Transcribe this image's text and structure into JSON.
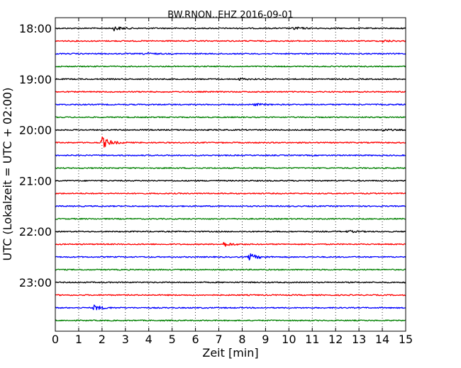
{
  "chart_data": {
    "type": "line",
    "title": "BW.RNON..EHZ 2016-09-01",
    "xlabel": "Zeit  [min]",
    "ylabel": "UTC (Lokalzeit = UTC + 02:00)",
    "xlim": [
      0,
      15
    ],
    "x_ticks": [
      "0",
      "1",
      "2",
      "3",
      "4",
      "5",
      "6",
      "7",
      "8",
      "9",
      "10",
      "11",
      "12",
      "13",
      "14",
      "15"
    ],
    "y_tick_labels": [
      "18:00",
      "19:00",
      "20:00",
      "21:00",
      "22:00",
      "23:00"
    ],
    "grid": "vertical dotted",
    "trace_interval_minutes": 15,
    "start_time": "18:00",
    "trace_colors": [
      "#000000",
      "#ff0000",
      "#0000ff",
      "#008000"
    ],
    "series": [
      {
        "start": "18:00",
        "color": "#000000",
        "events": [
          {
            "t": 2.5,
            "amp": 3
          },
          {
            "t": 10.2,
            "amp": 2
          }
        ]
      },
      {
        "start": "18:15",
        "color": "#ff0000",
        "events": [
          {
            "t": 14.0,
            "amp": 1.5
          }
        ]
      },
      {
        "start": "18:30",
        "color": "#0000ff",
        "events": [
          {
            "t": 3.8,
            "amp": 1.5
          }
        ]
      },
      {
        "start": "18:45",
        "color": "#008000",
        "events": []
      },
      {
        "start": "19:00",
        "color": "#000000",
        "events": [
          {
            "t": 7.8,
            "amp": 1.5
          }
        ]
      },
      {
        "start": "19:15",
        "color": "#ff0000",
        "events": []
      },
      {
        "start": "19:30",
        "color": "#0000ff",
        "events": [
          {
            "t": 8.5,
            "amp": 1.5
          }
        ]
      },
      {
        "start": "19:45",
        "color": "#008000",
        "events": []
      },
      {
        "start": "20:00",
        "color": "#000000",
        "events": [
          {
            "t": 14.0,
            "amp": 1.5
          }
        ]
      },
      {
        "start": "20:15",
        "color": "#ff0000",
        "events": [
          {
            "t": 2.0,
            "amp": 8
          }
        ]
      },
      {
        "start": "20:30",
        "color": "#0000ff",
        "events": []
      },
      {
        "start": "20:45",
        "color": "#008000",
        "events": []
      },
      {
        "start": "21:00",
        "color": "#000000",
        "events": []
      },
      {
        "start": "21:15",
        "color": "#ff0000",
        "events": []
      },
      {
        "start": "21:30",
        "color": "#0000ff",
        "events": []
      },
      {
        "start": "21:45",
        "color": "#008000",
        "events": []
      },
      {
        "start": "22:00",
        "color": "#000000",
        "events": [
          {
            "t": 12.5,
            "amp": 1.5
          }
        ]
      },
      {
        "start": "22:15",
        "color": "#ff0000",
        "events": [
          {
            "t": 7.2,
            "amp": 3
          }
        ]
      },
      {
        "start": "22:30",
        "color": "#0000ff",
        "events": [
          {
            "t": 8.3,
            "amp": 5
          }
        ]
      },
      {
        "start": "22:45",
        "color": "#008000",
        "events": []
      },
      {
        "start": "23:00",
        "color": "#000000",
        "events": []
      },
      {
        "start": "23:15",
        "color": "#ff0000",
        "events": []
      },
      {
        "start": "23:30",
        "color": "#0000ff",
        "events": [
          {
            "t": 1.65,
            "amp": 4
          }
        ]
      },
      {
        "start": "23:45",
        "color": "#008000",
        "events": []
      }
    ]
  }
}
